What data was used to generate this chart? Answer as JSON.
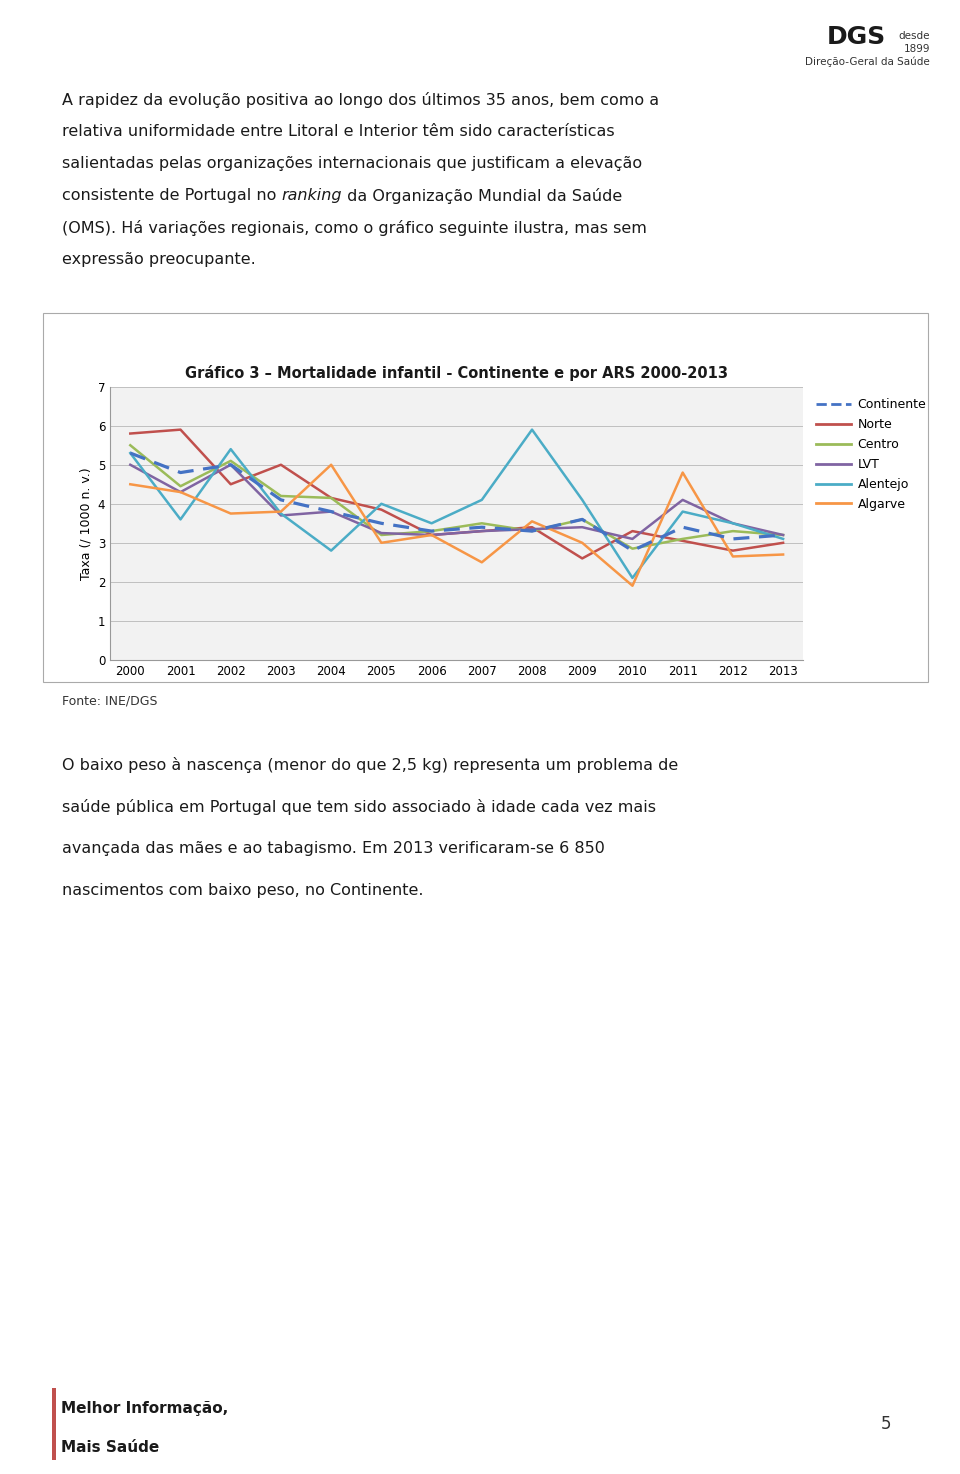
{
  "title": "Gráfico 3 – Mortalidade infantil - Continente e por ARS 2000-2013",
  "ylabel": "Taxa (/ 1000 n. v.)",
  "years": [
    2000,
    2001,
    2002,
    2003,
    2004,
    2005,
    2006,
    2007,
    2008,
    2009,
    2010,
    2011,
    2012,
    2013
  ],
  "series": {
    "Continente": {
      "values": [
        5.3,
        4.8,
        5.0,
        4.1,
        3.8,
        3.5,
        3.3,
        3.4,
        3.3,
        3.6,
        2.8,
        3.4,
        3.1,
        3.2
      ],
      "color": "#4472C4",
      "linestyle": "dashed",
      "linewidth": 2.0
    },
    "Norte": {
      "values": [
        5.8,
        5.9,
        4.5,
        5.0,
        4.15,
        3.85,
        3.2,
        3.3,
        3.4,
        2.6,
        3.3,
        3.05,
        2.8,
        3.0
      ],
      "color": "#C0504D",
      "linestyle": "solid",
      "linewidth": 1.8
    },
    "Centro": {
      "values": [
        5.5,
        4.45,
        5.1,
        4.2,
        4.15,
        3.2,
        3.3,
        3.5,
        3.3,
        3.6,
        2.85,
        3.1,
        3.3,
        3.2
      ],
      "color": "#9BBB59",
      "linestyle": "solid",
      "linewidth": 1.8
    },
    "LVT": {
      "values": [
        5.0,
        4.3,
        5.0,
        3.7,
        3.8,
        3.25,
        3.2,
        3.3,
        3.35,
        3.4,
        3.1,
        4.1,
        3.5,
        3.2
      ],
      "color": "#8064A2",
      "linestyle": "solid",
      "linewidth": 1.8
    },
    "Alentejo": {
      "values": [
        5.3,
        3.6,
        5.4,
        3.75,
        2.8,
        4.0,
        3.5,
        4.1,
        5.9,
        4.1,
        2.1,
        3.8,
        3.5,
        3.1
      ],
      "color": "#4BACC6",
      "linestyle": "solid",
      "linewidth": 1.8
    },
    "Algarve": {
      "values": [
        4.5,
        4.3,
        3.75,
        3.8,
        5.0,
        3.0,
        3.2,
        2.5,
        3.55,
        3.0,
        1.9,
        4.8,
        2.65,
        2.7
      ],
      "color": "#F79646",
      "linestyle": "solid",
      "linewidth": 1.8
    }
  },
  "ylim": [
    0,
    7
  ],
  "yticks": [
    0,
    1,
    2,
    3,
    4,
    5,
    6,
    7
  ],
  "background_color": "#FFFFFF",
  "chart_bg_color": "#F2F2F2",
  "grid_color": "#C0C0C0",
  "title_fontsize": 10.5,
  "axis_fontsize": 9,
  "tick_fontsize": 8.5,
  "legend_fontsize": 9,
  "source_text": "Fonte: INE/DGS",
  "page_number": "5"
}
